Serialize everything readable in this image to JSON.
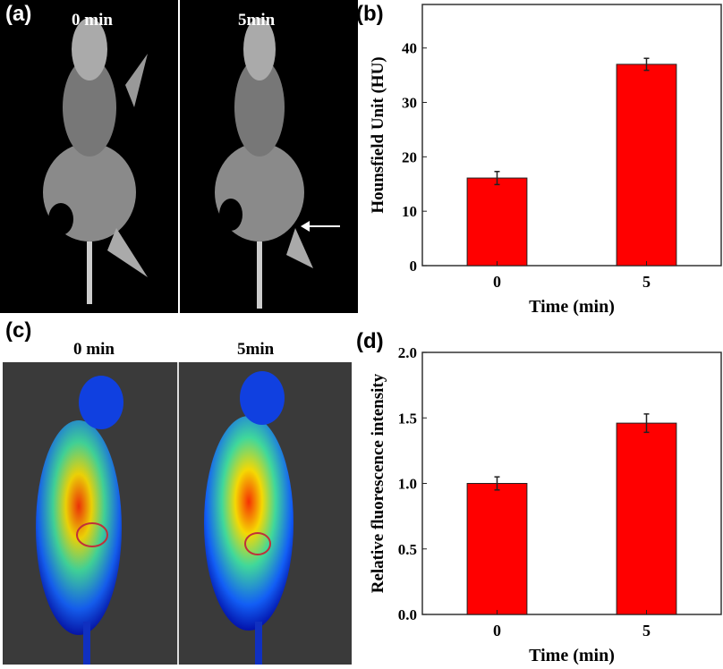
{
  "panels": {
    "a": {
      "label": "(a)",
      "left_title": "0 min",
      "right_title": "5min"
    },
    "c": {
      "label": "(c)",
      "left_title": "0 min",
      "right_title": "5min"
    },
    "b": {
      "label": "(b)"
    },
    "d": {
      "label": "(d)"
    }
  },
  "colors": {
    "bar": "#ff0000",
    "ct_background": "#000000",
    "fluor_background": "#3a3a3a",
    "roi_circle": "#c0303a"
  },
  "chart_data": [
    {
      "type": "bar",
      "panel": "b",
      "categories": [
        "0",
        "5"
      ],
      "values": [
        16.1,
        37.0
      ],
      "errors": [
        1.2,
        1.1
      ],
      "xlabel": "Time (min)",
      "ylabel": "Hounsfield Unit (HU)",
      "ylim": [
        0,
        48
      ],
      "yticks": [
        0,
        10,
        20,
        30,
        40
      ],
      "grid": false
    },
    {
      "type": "bar",
      "panel": "d",
      "categories": [
        "0",
        "5"
      ],
      "values": [
        1.0,
        1.46
      ],
      "errors": [
        0.05,
        0.07
      ],
      "xlabel": "Time (min)",
      "ylabel": "Relative fluorescence intensity",
      "ylim": [
        0,
        2.0
      ],
      "yticks": [
        "0.0",
        "0.5",
        "1.0",
        "1.5",
        "2.0"
      ],
      "grid": false
    }
  ]
}
